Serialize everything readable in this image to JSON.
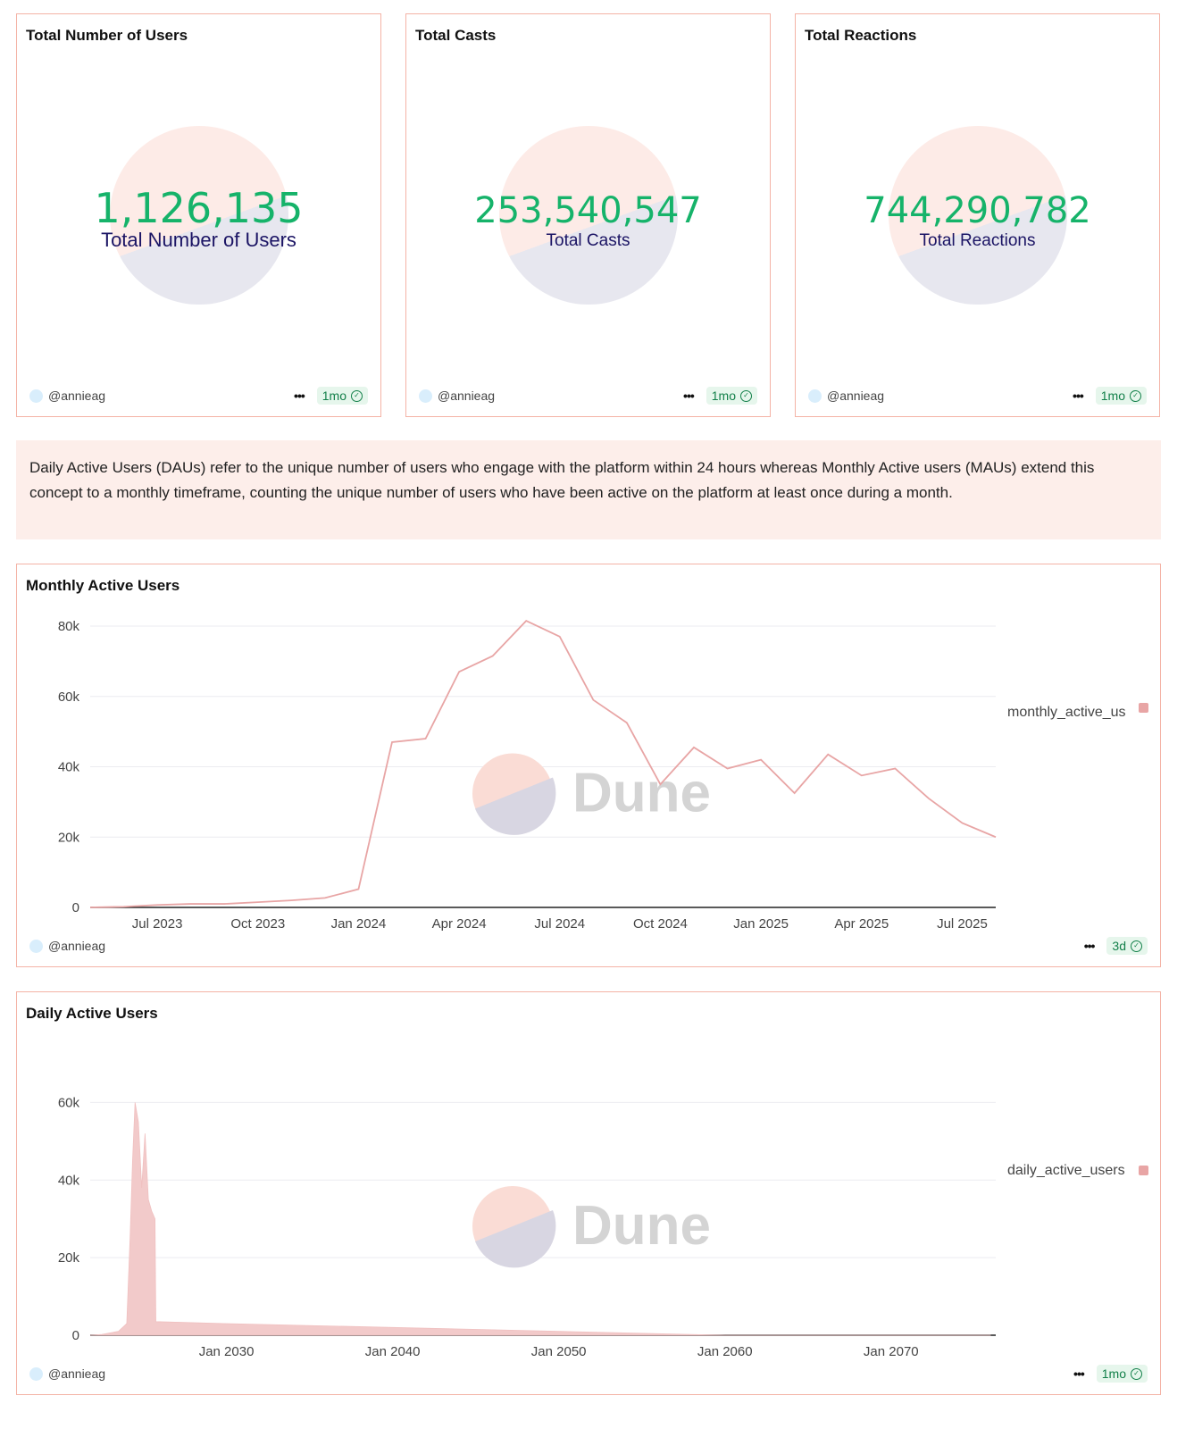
{
  "counters": [
    {
      "title": "Total Number of Users",
      "value": "1,126,135",
      "label": "Total Number of Users",
      "author": "@annieag",
      "age": "1mo"
    },
    {
      "title": "Total Casts",
      "value": "253,540,547",
      "label": "Total Casts",
      "author": "@annieag",
      "age": "1mo"
    },
    {
      "title": "Total Reactions",
      "value": "744,290,782",
      "label": "Total Reactions",
      "author": "@annieag",
      "age": "1mo"
    }
  ],
  "description": "Daily Active Users (DAUs) refer to the unique number of users who engage with the platform within 24 hours whereas Monthly Active users (MAUs) extend this concept to a monthly timeframe, counting the unique number of users who have been active on the platform at least once during a month.",
  "watermark": "Dune",
  "mau": {
    "author": "@annieag",
    "age": "3d"
  },
  "dau": {
    "author": "@annieag",
    "age": "1mo"
  },
  "colors": {
    "series": "#e8a5a5",
    "accent": "#16b36a",
    "border": "#f4b3a6"
  },
  "chart_data": [
    {
      "type": "line",
      "title": "Monthly Active Users",
      "legend": "monthly_active_us",
      "legend_position": "right",
      "x": [
        "May 2023",
        "Jun 2023",
        "Jul 2023",
        "Aug 2023",
        "Sep 2023",
        "Oct 2023",
        "Nov 2023",
        "Dec 2023",
        "Jan 2024",
        "Feb 2024",
        "Mar 2024",
        "Apr 2024",
        "May 2024",
        "Jun 2024",
        "Jul 2024",
        "Aug 2024",
        "Sep 2024",
        "Oct 2024",
        "Nov 2024",
        "Dec 2024",
        "Jan 2025",
        "Feb 2025",
        "Mar 2025",
        "Apr 2025",
        "May 2025",
        "Jun 2025",
        "Jul 2025",
        "Aug 2025"
      ],
      "values": [
        0,
        200,
        700,
        1000,
        1000,
        1500,
        2000,
        2700,
        5200,
        47000,
        48000,
        67000,
        71500,
        81500,
        77000,
        59000,
        52500,
        35000,
        45500,
        39500,
        42000,
        32500,
        43500,
        37500,
        39500,
        31000,
        24000,
        20000
      ],
      "xticks": [
        "Jul 2023",
        "Oct 2023",
        "Jan 2024",
        "Apr 2024",
        "Jul 2024",
        "Oct 2024",
        "Jan 2025",
        "Apr 2025",
        "Jul 2025"
      ],
      "yticks": [
        "0",
        "20k",
        "40k",
        "60k",
        "80k"
      ],
      "ylim": [
        0,
        80000
      ],
      "grid": true
    },
    {
      "type": "area",
      "title": "Daily Active Users",
      "legend": "daily_active_users",
      "legend_position": "right",
      "x": [
        2021.8,
        2022.5,
        2023.5,
        2024.0,
        2024.2,
        2024.35,
        2024.5,
        2024.7,
        2024.9,
        2025.1,
        2025.3,
        2025.5,
        2025.7,
        2025.75,
        2030,
        2040,
        2050,
        2060,
        2076
      ],
      "values": [
        0,
        200,
        1000,
        3000,
        25000,
        45000,
        60000,
        55000,
        38000,
        52000,
        35000,
        32000,
        30000,
        3500,
        3000,
        2000,
        1000,
        0,
        0
      ],
      "xticks": [
        "Jan 2030",
        "Jan 2040",
        "Jan 2050",
        "Jan 2060",
        "Jan 2070"
      ],
      "yticks": [
        "0",
        "20k",
        "40k",
        "60k"
      ],
      "ylim": [
        0,
        70000
      ],
      "grid": true
    }
  ]
}
